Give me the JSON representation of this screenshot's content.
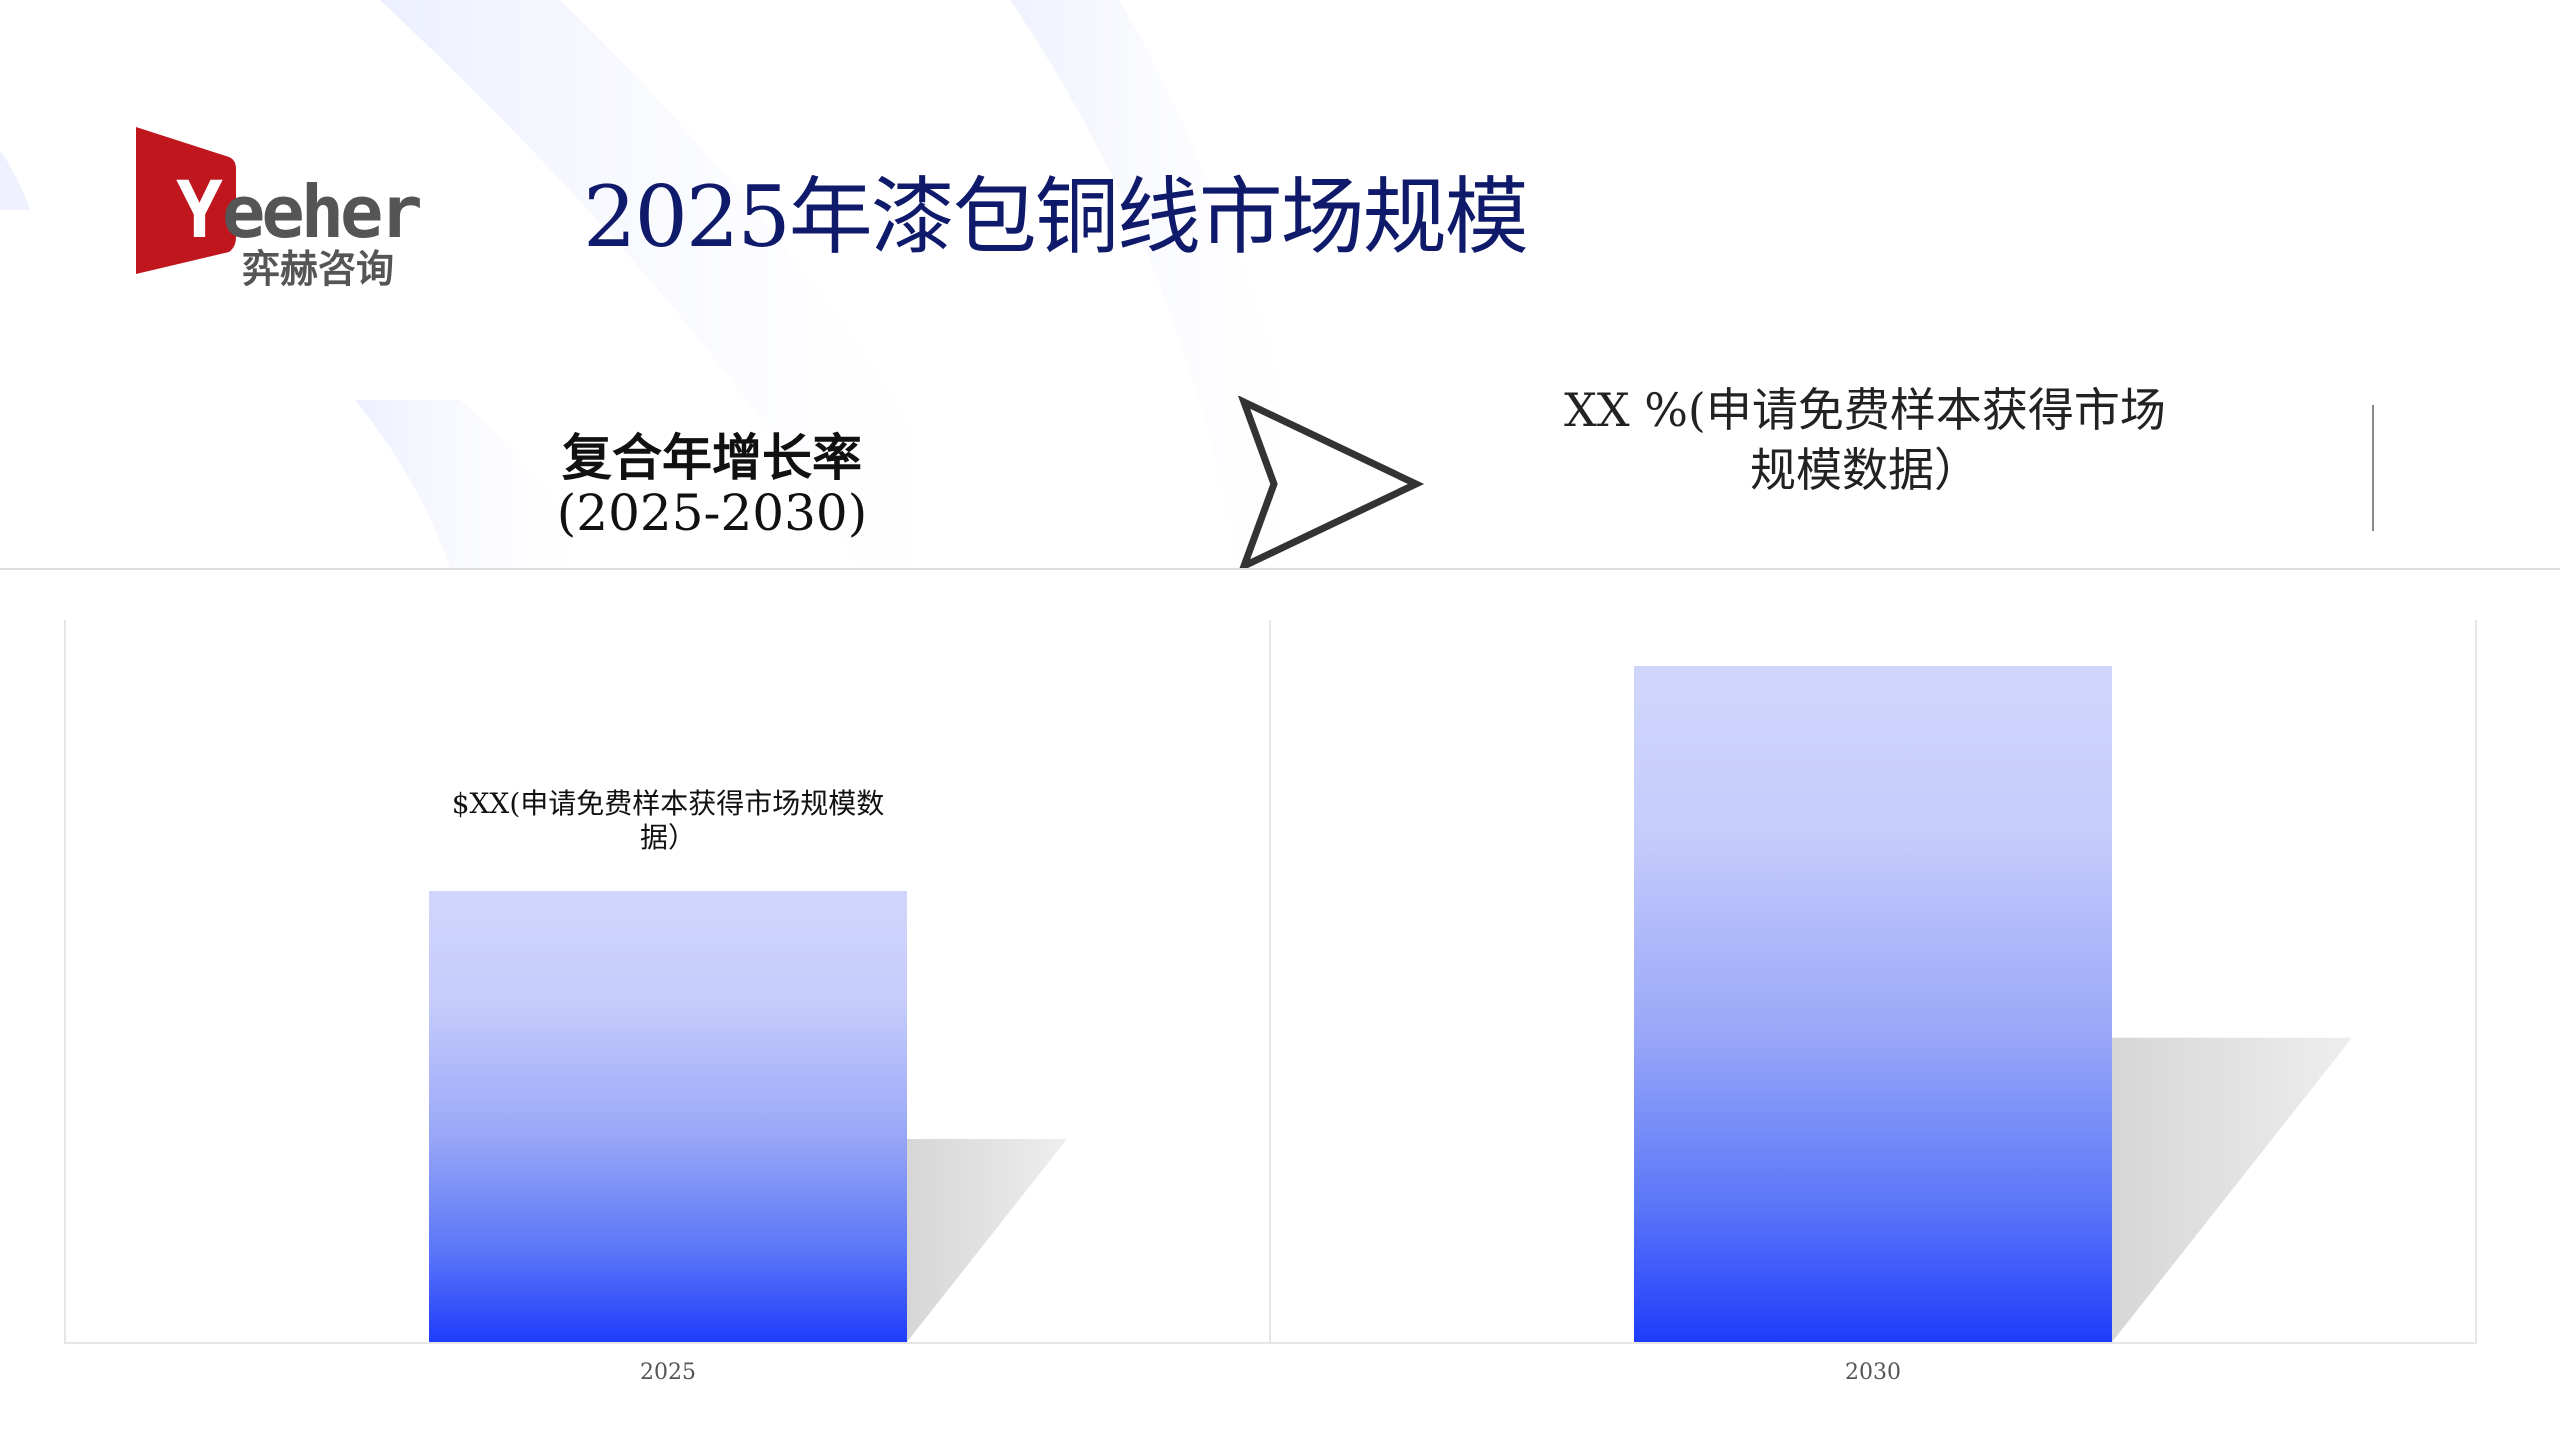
{
  "title": "2025年漆包铜线市场规模",
  "logo": {
    "brand": "Yeeher",
    "subtitle": "弈赫咨询",
    "color": "#c0171f"
  },
  "cagr": {
    "label": "复合年增长率",
    "period": "(2025-2030)",
    "value_text": "XX %(申请免费样本获得市场规模数据）"
  },
  "icons": {
    "arrow": "chevron-right-arrow-icon"
  },
  "colors": {
    "title": "#0f1a6b",
    "bar_bottom": "#1f3cfb",
    "bar_top": "#d0d6fb"
  },
  "chart_data": {
    "type": "bar",
    "categories": [
      "2025",
      "2030"
    ],
    "values_relative": [
      0.667,
      1.0
    ],
    "data_labels": [
      "$XX(申请免费样本获得市场规模数据）",
      ""
    ],
    "xlabel": "",
    "ylabel": "",
    "grid": false,
    "legend": "none"
  }
}
